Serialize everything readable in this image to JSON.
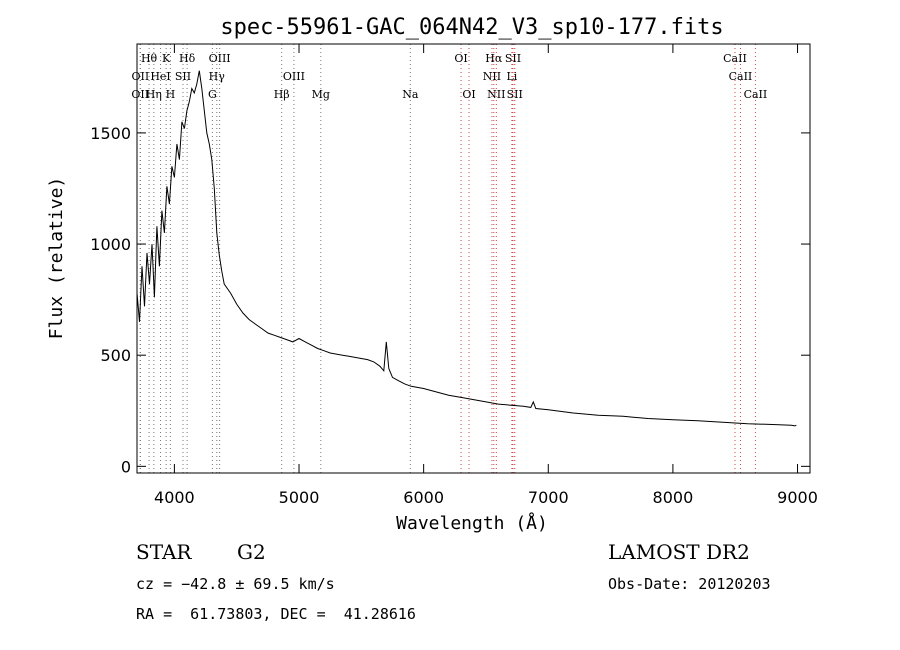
{
  "chart_data": {
    "type": "line",
    "title": "spec-55961-GAC_064N42_V3_sp10-177.fits",
    "xlabel": "Wavelength (Å)",
    "ylabel": "Flux (relative)",
    "xlim": [
      3700,
      9100
    ],
    "ylim": [
      -30,
      1900
    ],
    "xticks": [
      4000,
      5000,
      6000,
      7000,
      8000,
      9000
    ],
    "yticks": [
      0,
      500,
      1000,
      1500
    ],
    "grid": false,
    "series": [
      {
        "x": [
          3700,
          3720,
          3740,
          3760,
          3780,
          3800,
          3820,
          3840,
          3860,
          3880,
          3900,
          3920,
          3940,
          3960,
          3980,
          4000,
          4020,
          4040,
          4060,
          4080,
          4100,
          4120,
          4140,
          4160,
          4180,
          4200,
          4220,
          4240,
          4260,
          4280,
          4300,
          4320,
          4340,
          4360,
          4380,
          4400,
          4450,
          4500,
          4550,
          4600,
          4650,
          4700,
          4750,
          4800,
          4850,
          4900,
          4950,
          5000,
          5050,
          5100,
          5150,
          5200,
          5250,
          5300,
          5350,
          5400,
          5450,
          5500,
          5550,
          5600,
          5650,
          5680,
          5700,
          5720,
          5750,
          5800,
          5850,
          5900,
          6000,
          6100,
          6200,
          6300,
          6400,
          6500,
          6600,
          6700,
          6800,
          6860,
          6880,
          6900,
          7000,
          7200,
          7400,
          7600,
          7800,
          8000,
          8200,
          8400,
          8600,
          8800,
          8950,
          8980,
          8990
        ],
        "y": [
          780,
          650,
          900,
          720,
          960,
          820,
          1000,
          760,
          1080,
          900,
          1150,
          1050,
          1260,
          1180,
          1350,
          1300,
          1450,
          1380,
          1550,
          1520,
          1600,
          1640,
          1700,
          1680,
          1720,
          1780,
          1700,
          1600,
          1500,
          1450,
          1380,
          1250,
          1050,
          950,
          880,
          820,
          780,
          730,
          690,
          660,
          640,
          620,
          600,
          590,
          580,
          570,
          560,
          575,
          560,
          545,
          530,
          520,
          510,
          505,
          500,
          495,
          490,
          485,
          480,
          470,
          450,
          430,
          560,
          440,
          400,
          385,
          370,
          360,
          350,
          335,
          320,
          310,
          300,
          290,
          280,
          275,
          270,
          265,
          290,
          260,
          255,
          240,
          230,
          225,
          215,
          210,
          205,
          198,
          192,
          188,
          185,
          182,
          185
        ]
      }
    ],
    "line_groups": [
      {
        "labels": [
          "Hθ",
          "K",
          "Hδ",
          "OIII",
          "OI",
          "Hα",
          "SII",
          "CaII"
        ],
        "x": [
          3797,
          3934,
          4102,
          4363,
          6300,
          6563,
          6717,
          8498
        ]
      },
      {
        "labels": [
          "OII",
          "HeI",
          "SII",
          "Hγ",
          "OIII",
          "NII",
          "Li",
          "CaII"
        ],
        "x": [
          3727,
          3889,
          4069,
          4340,
          4959,
          6548,
          6708,
          8542
        ]
      },
      {
        "labels": [
          "OII",
          "Hη",
          "H",
          "G",
          "Hβ",
          "Mg",
          "Na",
          "OI",
          "NII",
          "SII",
          "CaII"
        ],
        "x": [
          3726,
          3835,
          3968,
          4305,
          4861,
          5175,
          5893,
          6364,
          6583,
          6731,
          8662
        ]
      }
    ]
  },
  "info": {
    "class": "STAR",
    "subclass": "G2",
    "survey": "LAMOST DR2",
    "cz": "cz = −42.8 ± 69.5 km/s",
    "obs_date": "Obs-Date: 20120203",
    "coords": "RA =  61.73803, DEC =  41.28616"
  }
}
